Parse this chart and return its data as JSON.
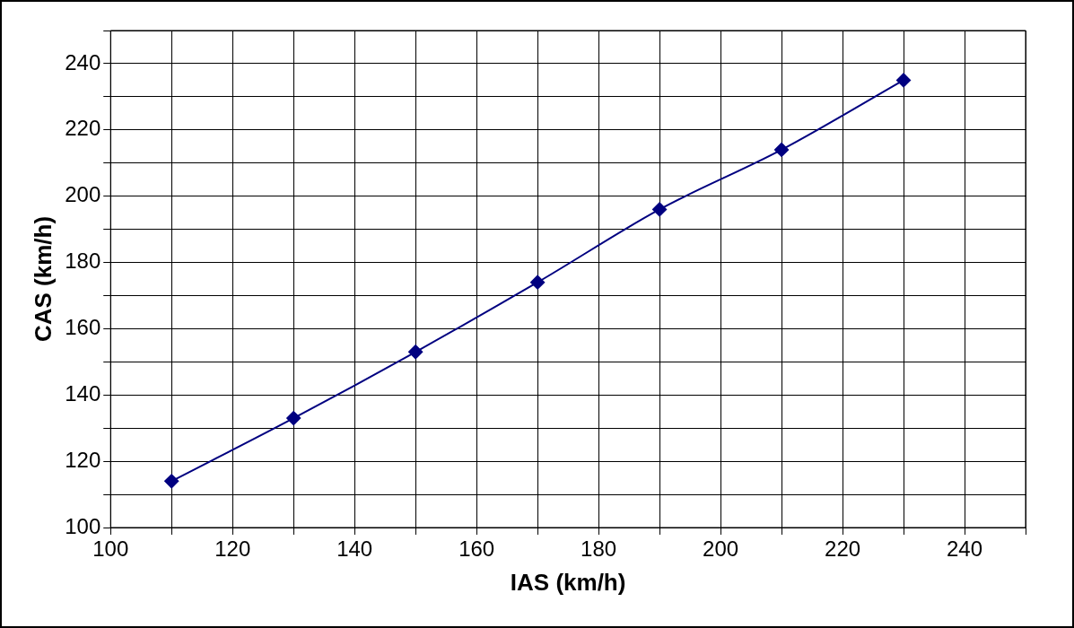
{
  "chart_data": {
    "type": "line",
    "xlabel": "IAS (km/h)",
    "ylabel": "CAS (km/h)",
    "x": [
      110,
      130,
      150,
      170,
      190,
      210,
      230
    ],
    "series": [
      {
        "color": "#000080",
        "values": [
          114,
          133,
          153,
          174,
          196,
          214,
          235
        ]
      }
    ],
    "xlim": [
      100,
      250
    ],
    "ylim": [
      100,
      250
    ],
    "xticks": [
      100,
      {
        "value": 110,
        "label": null
      },
      120,
      {
        "value": 130,
        "label": null
      },
      140,
      {
        "value": 150,
        "label": null
      },
      160,
      {
        "value": 170,
        "label": null
      },
      180,
      {
        "value": 190,
        "label": null
      },
      200,
      {
        "value": 210,
        "label": null
      },
      220,
      {
        "value": 230,
        "label": null
      },
      240,
      {
        "value": 250,
        "label": null
      }
    ],
    "yticks": [
      100,
      {
        "value": 110,
        "label": null
      },
      120,
      {
        "value": 130,
        "label": null
      },
      140,
      {
        "value": 150,
        "label": null
      },
      160,
      {
        "value": 170,
        "label": null
      },
      180,
      {
        "value": 190,
        "label": null
      },
      200,
      {
        "value": 210,
        "label": null
      },
      220,
      {
        "value": 230,
        "label": null
      },
      240,
      {
        "value": 250,
        "label": null
      }
    ],
    "grid": true,
    "legend": false,
    "marker": "diamond",
    "line_style": "solid"
  }
}
